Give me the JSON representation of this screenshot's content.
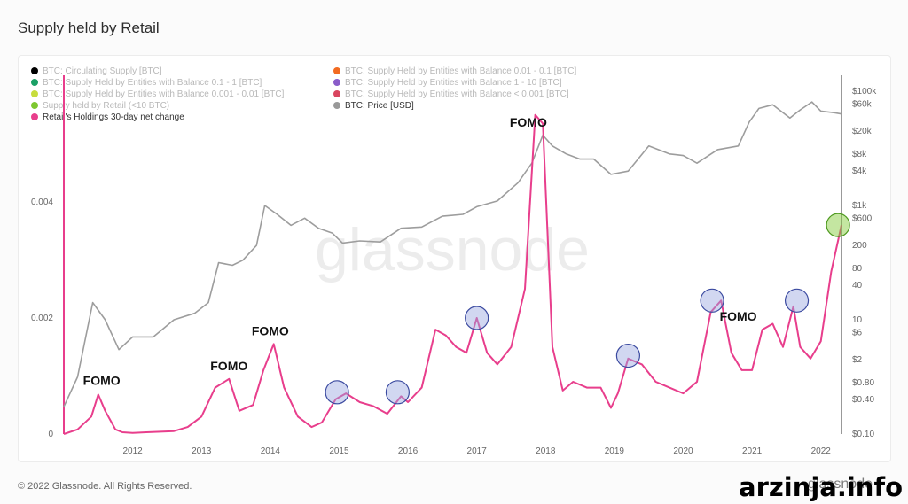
{
  "page": {
    "title": "Supply held by Retail",
    "copyright": "© 2022 Glassnode. All Rights Reserved.",
    "brand": "glassnode",
    "site": "arzinja.info",
    "watermark": "glassnode"
  },
  "legend": [
    {
      "label": "BTC: Circulating Supply [BTC]",
      "color": "#000000",
      "active": false
    },
    {
      "label": "BTC: Supply Held by Entities with Balance 0.01 - 0.1 [BTC]",
      "color": "#f26b21",
      "active": false
    },
    {
      "label": "BTC: Supply Held by Entities with Balance 0.1 - 1 [BTC]",
      "color": "#1aa066",
      "active": false
    },
    {
      "label": "BTC: Supply Held by Entities with Balance 1 - 10 [BTC]",
      "color": "#8a5cc9",
      "active": false
    },
    {
      "label": "BTC: Supply Held by Entities with Balance 0.001 - 0.01 [BTC]",
      "color": "#c7dd3d",
      "active": false
    },
    {
      "label": "BTC: Supply Held by Entities with Balance < 0.001 [BTC]",
      "color": "#d9455f",
      "active": false
    },
    {
      "label": "Supply held by Retail (<10 BTC)",
      "color": "#7dc72f",
      "active": false
    },
    {
      "label": "BTC: Price [USD]",
      "color": "#999999",
      "active": true
    },
    {
      "label": "Retail's Holdings 30-day net change",
      "color": "#e83e8c",
      "active": true
    }
  ],
  "chart_data": {
    "type": "line",
    "title": "Supply held by Retail",
    "x_ticks": [
      "2012",
      "2013",
      "2014",
      "2015",
      "2016",
      "2017",
      "2018",
      "2019",
      "2020",
      "2021",
      "2022"
    ],
    "x_range": [
      2011.0,
      2022.3
    ],
    "y_left": {
      "ticks": [
        "0",
        "0.002",
        "0.004"
      ],
      "values": [
        0,
        0.002,
        0.004
      ],
      "range": [
        0,
        0.0058
      ]
    },
    "y_right": {
      "scale": "log",
      "ticks": [
        "$100k",
        "$60k",
        "$20k",
        "$8k",
        "$4k",
        "$1k",
        "$600",
        "200",
        "80",
        "40",
        "10",
        "$6",
        "$2",
        "$0.80",
        "$0.40",
        "$0.10"
      ],
      "values": [
        100000,
        60000,
        20000,
        8000,
        4000,
        1000,
        600,
        200,
        80,
        40,
        10,
        6,
        2,
        0.8,
        0.4,
        0.1
      ],
      "range": [
        0.1,
        100000
      ]
    },
    "grid": false,
    "colors": {
      "price": "#9d9d9d",
      "net_change": "#e83e8c"
    },
    "series": [
      {
        "name": "BTC: Price [USD]",
        "axis": "right",
        "x": [
          2011.0,
          2011.2,
          2011.42,
          2011.6,
          2011.8,
          2012.0,
          2012.3,
          2012.6,
          2012.9,
          2013.1,
          2013.25,
          2013.45,
          2013.6,
          2013.8,
          2013.92,
          2014.1,
          2014.3,
          2014.5,
          2014.7,
          2014.9,
          2015.05,
          2015.3,
          2015.6,
          2015.9,
          2016.2,
          2016.5,
          2016.8,
          2017.0,
          2017.3,
          2017.6,
          2017.8,
          2017.96,
          2018.1,
          2018.3,
          2018.5,
          2018.7,
          2018.95,
          2019.2,
          2019.5,
          2019.8,
          2020.0,
          2020.2,
          2020.5,
          2020.8,
          2020.96,
          2021.1,
          2021.3,
          2021.55,
          2021.7,
          2021.87,
          2022.0,
          2022.2,
          2022.3
        ],
        "y": [
          0.3,
          1,
          20,
          10,
          3,
          5,
          5,
          10,
          13,
          20,
          100,
          90,
          110,
          200,
          1000,
          700,
          450,
          600,
          400,
          330,
          220,
          240,
          230,
          400,
          420,
          650,
          700,
          950,
          1200,
          2500,
          5500,
          17000,
          11000,
          8000,
          6500,
          6500,
          3500,
          4000,
          11000,
          8000,
          7500,
          5500,
          9500,
          11000,
          29000,
          50000,
          58000,
          34000,
          47000,
          65000,
          45000,
          42000,
          40000
        ]
      },
      {
        "name": "Retail's Holdings 30-day net change",
        "axis": "left",
        "x": [
          2011.0,
          2011.2,
          2011.4,
          2011.5,
          2011.6,
          2011.75,
          2011.85,
          2012.0,
          2012.2,
          2012.4,
          2012.6,
          2012.8,
          2013.0,
          2013.2,
          2013.4,
          2013.55,
          2013.75,
          2013.9,
          2014.05,
          2014.2,
          2014.4,
          2014.6,
          2014.75,
          2014.95,
          2015.1,
          2015.3,
          2015.5,
          2015.7,
          2015.9,
          2016.0,
          2016.2,
          2016.4,
          2016.55,
          2016.7,
          2016.85,
          2017.0,
          2017.15,
          2017.3,
          2017.5,
          2017.7,
          2017.85,
          2017.96,
          2018.1,
          2018.25,
          2018.4,
          2018.6,
          2018.8,
          2018.95,
          2019.05,
          2019.2,
          2019.4,
          2019.6,
          2019.8,
          2020.0,
          2020.2,
          2020.4,
          2020.55,
          2020.7,
          2020.85,
          2021.0,
          2021.15,
          2021.3,
          2021.45,
          2021.6,
          2021.7,
          2021.85,
          2022.0,
          2022.15,
          2022.3
        ],
        "y": [
          0.0,
          8e-05,
          0.0003,
          0.00068,
          0.0004,
          8e-05,
          3e-05,
          2e-05,
          3e-05,
          4e-05,
          5e-05,
          0.00012,
          0.0003,
          0.0008,
          0.00095,
          0.0004,
          0.0005,
          0.0011,
          0.00155,
          0.0008,
          0.0003,
          0.00012,
          0.0002,
          0.0006,
          0.0007,
          0.00055,
          0.00048,
          0.00035,
          0.00065,
          0.00055,
          0.0008,
          0.0018,
          0.0017,
          0.0015,
          0.0014,
          0.002,
          0.0014,
          0.0012,
          0.0015,
          0.0025,
          0.0055,
          0.00535,
          0.0015,
          0.00075,
          0.0009,
          0.0008,
          0.0008,
          0.00045,
          0.0007,
          0.0013,
          0.0012,
          0.0009,
          0.0008,
          0.0007,
          0.0009,
          0.0021,
          0.0023,
          0.0014,
          0.0011,
          0.0011,
          0.0018,
          0.0019,
          0.0015,
          0.0022,
          0.0015,
          0.0013,
          0.0016,
          0.0028,
          0.0036
        ]
      }
    ],
    "annotations": [
      {
        "label": "FOMO",
        "x": 2011.55,
        "y": 0.00085
      },
      {
        "label": "FOMO",
        "x": 2013.4,
        "y": 0.0011
      },
      {
        "label": "FOMO",
        "x": 2014.0,
        "y": 0.0017
      },
      {
        "label": "FOMO",
        "x": 2017.75,
        "y": 0.0053
      },
      {
        "label": "FOMO",
        "x": 2020.8,
        "y": 0.00195
      }
    ],
    "circles": [
      {
        "x": 2014.97,
        "y": 0.00072,
        "color": "#9aa6e0"
      },
      {
        "x": 2015.85,
        "y": 0.00072,
        "color": "#9aa6e0"
      },
      {
        "x": 2017.0,
        "y": 0.002,
        "color": "#9aa6e0"
      },
      {
        "x": 2019.2,
        "y": 0.00135,
        "color": "#9aa6e0"
      },
      {
        "x": 2020.42,
        "y": 0.0023,
        "color": "#9aa6e0"
      },
      {
        "x": 2021.65,
        "y": 0.0023,
        "color": "#9aa6e0"
      },
      {
        "x": 2022.25,
        "y": 0.0036,
        "color": "#7dc72f"
      }
    ]
  }
}
